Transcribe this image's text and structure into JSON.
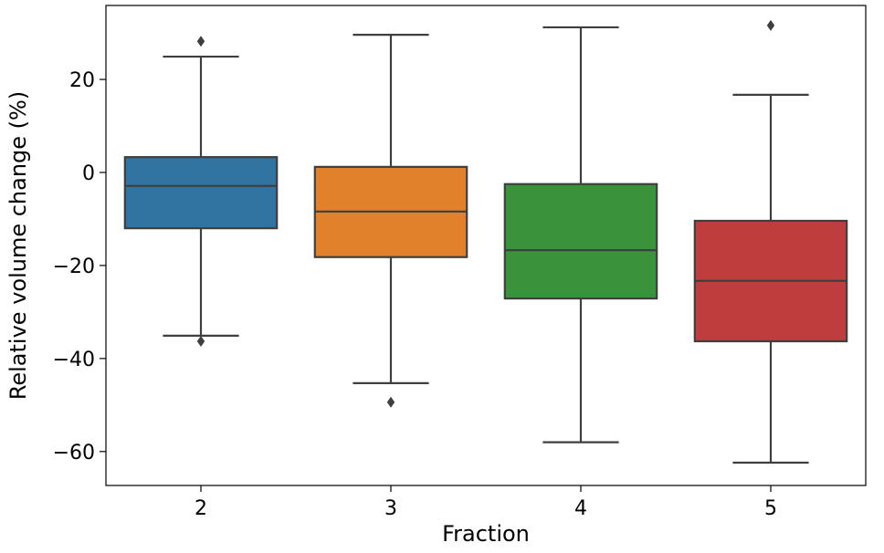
{
  "chart_data": {
    "type": "box",
    "title": "",
    "xlabel": "Fraction",
    "ylabel": "Relative volume change (%)",
    "ylim": [
      -67.3,
      35.9
    ],
    "yticks": [
      20,
      0,
      -20,
      -40,
      -60
    ],
    "ytick_labels": [
      "20",
      "0",
      "−20",
      "−40",
      "−60"
    ],
    "grid": false,
    "categories": [
      "2",
      "3",
      "4",
      "5"
    ],
    "boxes": [
      {
        "category": "2",
        "whisker_low": -35.1,
        "q1": -12.0,
        "median": -2.9,
        "q3": 3.3,
        "whisker_high": 24.9,
        "outliers": [
          28.2,
          -36.3
        ],
        "color": "#3274a1"
      },
      {
        "category": "3",
        "whisker_low": -45.3,
        "q1": -18.2,
        "median": -8.4,
        "q3": 1.2,
        "whisker_high": 29.6,
        "outliers": [
          -49.4
        ],
        "color": "#e1812c"
      },
      {
        "category": "4",
        "whisker_low": -58.0,
        "q1": -27.1,
        "median": -16.7,
        "q3": -2.5,
        "whisker_high": 31.2,
        "outliers": [],
        "color": "#3a923a"
      },
      {
        "category": "5",
        "whisker_low": -62.4,
        "q1": -36.3,
        "median": -23.3,
        "q3": -10.4,
        "whisker_high": 16.7,
        "outliers": [
          31.6
        ],
        "color": "#c03d3e"
      }
    ]
  }
}
